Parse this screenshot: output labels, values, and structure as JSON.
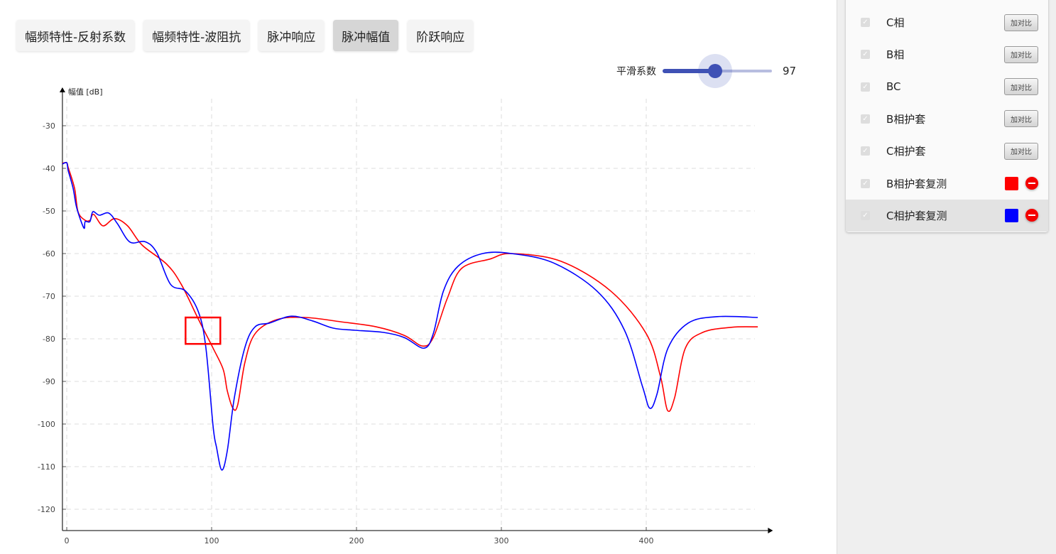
{
  "tabs": [
    {
      "label": "幅频特性-反射系数",
      "active": false
    },
    {
      "label": "幅频特性-波阻抗",
      "active": false
    },
    {
      "label": "脉冲响应",
      "active": false
    },
    {
      "label": "脉冲幅值",
      "active": true
    },
    {
      "label": "阶跃响应",
      "active": false
    }
  ],
  "smoothing": {
    "label": "平滑系数",
    "value": "97",
    "fill_fraction": 0.48,
    "accent": "#3f51b5"
  },
  "legend_panel": {
    "compare_label": "加对比",
    "items": [
      {
        "label": "C相",
        "checked": true,
        "type": "compare"
      },
      {
        "label": "B相",
        "checked": true,
        "type": "compare"
      },
      {
        "label": "BC",
        "checked": true,
        "type": "compare"
      },
      {
        "label": "B相护套",
        "checked": true,
        "type": "compare"
      },
      {
        "label": "C相护套",
        "checked": true,
        "type": "compare"
      },
      {
        "label": "B相护套复测",
        "checked": true,
        "type": "series",
        "color": "#ff0000"
      },
      {
        "label": "C相护套复测",
        "checked": true,
        "type": "series",
        "color": "#0000ff",
        "selected": true
      }
    ]
  },
  "chart_data": {
    "type": "line",
    "ylabel": "幅值 [dB]",
    "xlabel": "",
    "xlim": [
      -3,
      484
    ],
    "ylim": [
      -125,
      -22
    ],
    "xticks": [
      0,
      100,
      200,
      300,
      400
    ],
    "yticks": [
      -30,
      -40,
      -50,
      -60,
      -70,
      -80,
      -90,
      -100,
      -110,
      -120
    ],
    "grid": true,
    "annotation_box": {
      "x": [
        82,
        106
      ],
      "y": [
        -75,
        -81.2
      ],
      "color": "#ff0000"
    },
    "series": [
      {
        "name": "B相护套复测",
        "color": "#ff0000",
        "points": [
          [
            -3,
            -38.8
          ],
          [
            0,
            -38.7
          ],
          [
            1,
            -39.8
          ],
          [
            5.4,
            -44.7
          ],
          [
            7.8,
            -50.2
          ],
          [
            12.7,
            -52.2
          ],
          [
            16,
            -52.2
          ],
          [
            18.6,
            -50.8
          ],
          [
            25,
            -53.5
          ],
          [
            33,
            -51.8
          ],
          [
            42,
            -53.5
          ],
          [
            52,
            -58
          ],
          [
            69,
            -62.5
          ],
          [
            79,
            -67.2
          ],
          [
            91,
            -75.5
          ],
          [
            101,
            -82.2
          ],
          [
            108,
            -87.2
          ],
          [
            110.8,
            -92.2
          ],
          [
            114.7,
            -96.3
          ],
          [
            118,
            -95.5
          ],
          [
            123,
            -85.5
          ],
          [
            130,
            -78.8
          ],
          [
            145,
            -75.5
          ],
          [
            164.7,
            -75
          ],
          [
            189,
            -76
          ],
          [
            213.7,
            -77.2
          ],
          [
            233,
            -79.2
          ],
          [
            245.6,
            -81.7
          ],
          [
            253,
            -79.7
          ],
          [
            262.7,
            -70.5
          ],
          [
            272.5,
            -63.5
          ],
          [
            292,
            -61.3
          ],
          [
            307,
            -60
          ],
          [
            341,
            -61.8
          ],
          [
            375.5,
            -68.8
          ],
          [
            400,
            -78.8
          ],
          [
            409.8,
            -88.8
          ],
          [
            414.7,
            -96.8
          ],
          [
            419.6,
            -93.8
          ],
          [
            427,
            -82.2
          ],
          [
            439,
            -78.5
          ],
          [
            458.8,
            -77.3
          ],
          [
            477,
            -77.2
          ]
        ]
      },
      {
        "name": "C相护套复测",
        "color": "#0000ff",
        "points": [
          [
            -3,
            -39
          ],
          [
            0,
            -38.7
          ],
          [
            1,
            -40.5
          ],
          [
            4.4,
            -44.7
          ],
          [
            6.9,
            -49.3
          ],
          [
            11.8,
            -54
          ],
          [
            12.7,
            -52.5
          ],
          [
            16,
            -52.5
          ],
          [
            18,
            -50.2
          ],
          [
            22.5,
            -51
          ],
          [
            29,
            -50.5
          ],
          [
            35,
            -53
          ],
          [
            43.6,
            -57.3
          ],
          [
            54,
            -57.2
          ],
          [
            62,
            -59.7
          ],
          [
            71.6,
            -67.2
          ],
          [
            82,
            -68.8
          ],
          [
            91,
            -73.8
          ],
          [
            96,
            -82
          ],
          [
            101,
            -100.5
          ],
          [
            103.4,
            -105.5
          ],
          [
            107,
            -110.8
          ],
          [
            110.8,
            -106.3
          ],
          [
            115.7,
            -93.8
          ],
          [
            123,
            -82
          ],
          [
            130,
            -77.2
          ],
          [
            140,
            -76.3
          ],
          [
            155,
            -74.7
          ],
          [
            169.6,
            -75.8
          ],
          [
            184,
            -77.5
          ],
          [
            199,
            -78
          ],
          [
            218.6,
            -78.5
          ],
          [
            233,
            -79.7
          ],
          [
            246.6,
            -82.2
          ],
          [
            253,
            -78.8
          ],
          [
            260,
            -68.8
          ],
          [
            270,
            -63
          ],
          [
            287,
            -60
          ],
          [
            307,
            -60
          ],
          [
            336,
            -62.2
          ],
          [
            366,
            -68.8
          ],
          [
            385,
            -78
          ],
          [
            397.5,
            -91.3
          ],
          [
            402.5,
            -96.3
          ],
          [
            407.4,
            -93
          ],
          [
            415,
            -82.2
          ],
          [
            429,
            -76.3
          ],
          [
            449,
            -74.8
          ],
          [
            477,
            -75
          ]
        ]
      }
    ]
  }
}
